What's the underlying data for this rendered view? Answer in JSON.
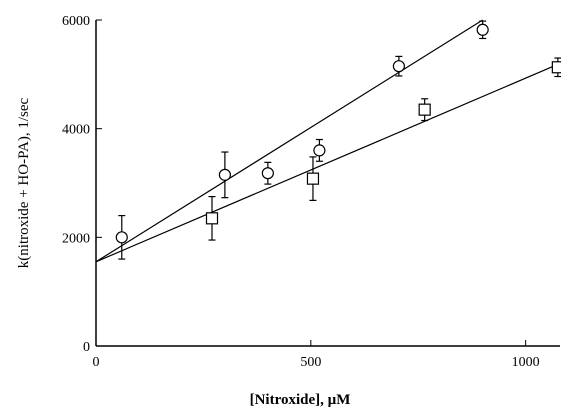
{
  "chart_data": {
    "type": "scatter",
    "title": "",
    "xlabel": "[Nitroxide], µM",
    "ylabel": "k(nitroxide + HO-PA), 1/sec",
    "xlim": [
      0,
      1080
    ],
    "ylim": [
      0,
      6000
    ],
    "x_ticks": [
      0,
      500,
      1000
    ],
    "y_ticks": [
      0,
      2000,
      4000,
      6000
    ],
    "grid": false,
    "legend": "none",
    "series": [
      {
        "marker": "circle",
        "points": [
          {
            "x": 60,
            "y": 2000,
            "err": 400
          },
          {
            "x": 300,
            "y": 3150,
            "err": 420
          },
          {
            "x": 400,
            "y": 3180,
            "err": 200
          },
          {
            "x": 520,
            "y": 3600,
            "err": 200
          },
          {
            "x": 705,
            "y": 5150,
            "err": 180
          },
          {
            "x": 900,
            "y": 5820,
            "err": 160
          }
        ],
        "fit": {
          "x0": 0,
          "y0": 1550,
          "x1": 900,
          "y1": 6000
        }
      },
      {
        "marker": "square",
        "points": [
          {
            "x": 270,
            "y": 2350,
            "err": 400
          },
          {
            "x": 505,
            "y": 3080,
            "err": 400
          },
          {
            "x": 765,
            "y": 4350,
            "err": 200
          },
          {
            "x": 1075,
            "y": 5130,
            "err": 170
          }
        ],
        "fit": {
          "x0": 0,
          "y0": 1550,
          "x1": 1080,
          "y1": 5200
        }
      }
    ]
  }
}
